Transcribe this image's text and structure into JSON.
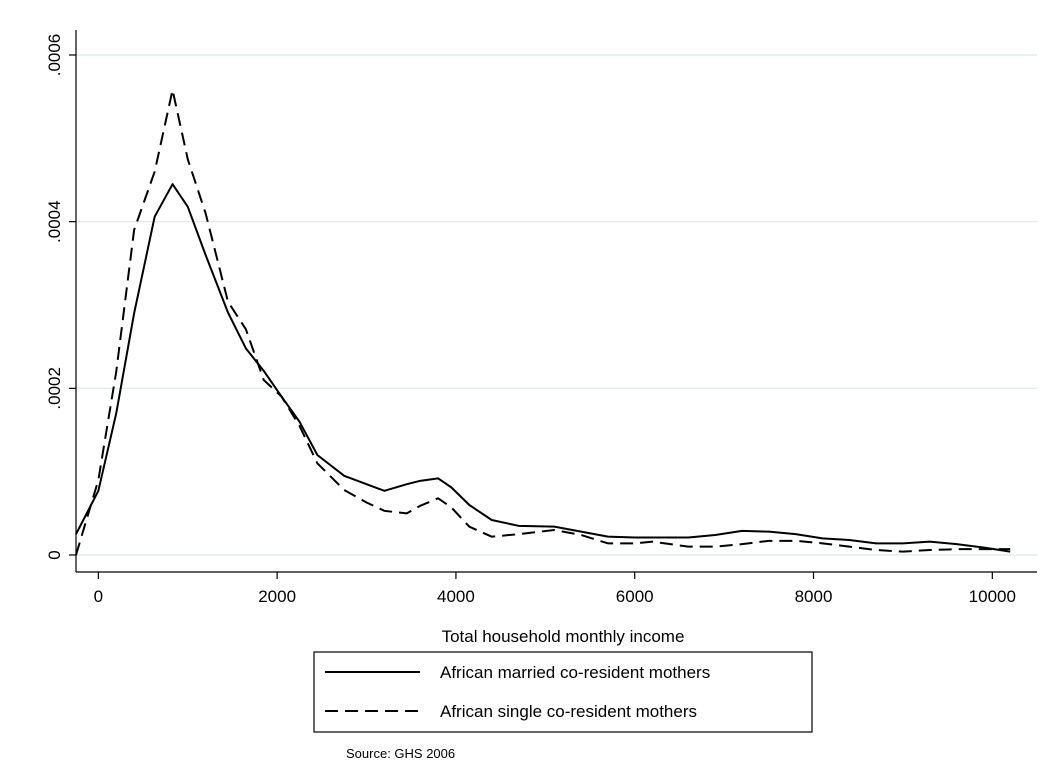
{
  "chart_data": {
    "type": "line",
    "xlabel": "Total household monthly income",
    "ylabel": "",
    "xlim": [
      -250,
      10500
    ],
    "ylim": [
      0,
      0.0006
    ],
    "x_ticks": [
      0,
      2000,
      4000,
      6000,
      8000,
      10000
    ],
    "x_tick_labels": [
      "0",
      "2000",
      "4000",
      "6000",
      "8000",
      "10000"
    ],
    "y_ticks": [
      0,
      0.0002,
      0.0004,
      0.0006
    ],
    "y_tick_labels": [
      "0",
      ".0002",
      ".0004",
      ".0006"
    ],
    "grid": "horizontal",
    "legend_position": "bottom",
    "note": "Source: GHS 2006",
    "series": [
      {
        "name": "African married co-resident mothers",
        "style": "solid",
        "color": "#000000",
        "x": [
          -250,
          0,
          200,
          400,
          630,
          830,
          1000,
          1200,
          1450,
          1650,
          1850,
          2050,
          2250,
          2450,
          2750,
          3000,
          3200,
          3450,
          3600,
          3800,
          3950,
          4150,
          4400,
          4700,
          5100,
          5400,
          5700,
          6000,
          6200,
          6400,
          6600,
          6900,
          7200,
          7500,
          7800,
          8100,
          8400,
          8700,
          9000,
          9300,
          9600,
          9900,
          10200
        ],
        "y": [
          2.5e-05,
          7.7e-05,
          0.00017,
          0.00029,
          0.000406,
          0.000445,
          0.000418,
          0.00036,
          0.000291,
          0.000248,
          0.000221,
          0.00019,
          0.00016,
          0.00012,
          9.5e-05,
          8.5e-05,
          7.7e-05,
          8.5e-05,
          8.9e-05,
          9.2e-05,
          8.1e-05,
          6e-05,
          4.2e-05,
          3.5e-05,
          3.4e-05,
          2.8e-05,
          2.2e-05,
          2.1e-05,
          2.1e-05,
          2.1e-05,
          2.1e-05,
          2.4e-05,
          2.9e-05,
          2.8e-05,
          2.5e-05,
          2e-05,
          1.8e-05,
          1.4e-05,
          1.4e-05,
          1.6e-05,
          1.3e-05,
          9e-06,
          4e-06
        ]
      },
      {
        "name": "African single co-resident mothers",
        "style": "dashed",
        "color": "#000000",
        "x": [
          -250,
          0,
          200,
          400,
          630,
          830,
          1000,
          1200,
          1450,
          1650,
          1850,
          2050,
          2250,
          2450,
          2750,
          3000,
          3200,
          3450,
          3600,
          3800,
          3950,
          4150,
          4400,
          4700,
          5100,
          5400,
          5700,
          6000,
          6200,
          6400,
          6600,
          6900,
          7200,
          7500,
          7800,
          8100,
          8400,
          8700,
          9000,
          9300,
          9600,
          9900,
          10200
        ],
        "y": [
          0.0,
          9e-05,
          0.00022,
          0.00039,
          0.00046,
          0.000558,
          0.000475,
          0.00041,
          0.000304,
          0.000271,
          0.00021,
          0.00019,
          0.000155,
          0.00011,
          7.8e-05,
          6.3e-05,
          5.3e-05,
          5e-05,
          5.9e-05,
          6.8e-05,
          5.7e-05,
          3.4e-05,
          2.2e-05,
          2.5e-05,
          3e-05,
          2.4e-05,
          1.4e-05,
          1.4e-05,
          1.6e-05,
          1.3e-05,
          1e-05,
          1e-05,
          1.3e-05,
          1.7e-05,
          1.7e-05,
          1.4e-05,
          1e-05,
          6e-06,
          4e-06,
          6e-06,
          7e-06,
          7e-06,
          7e-06
        ]
      }
    ]
  }
}
